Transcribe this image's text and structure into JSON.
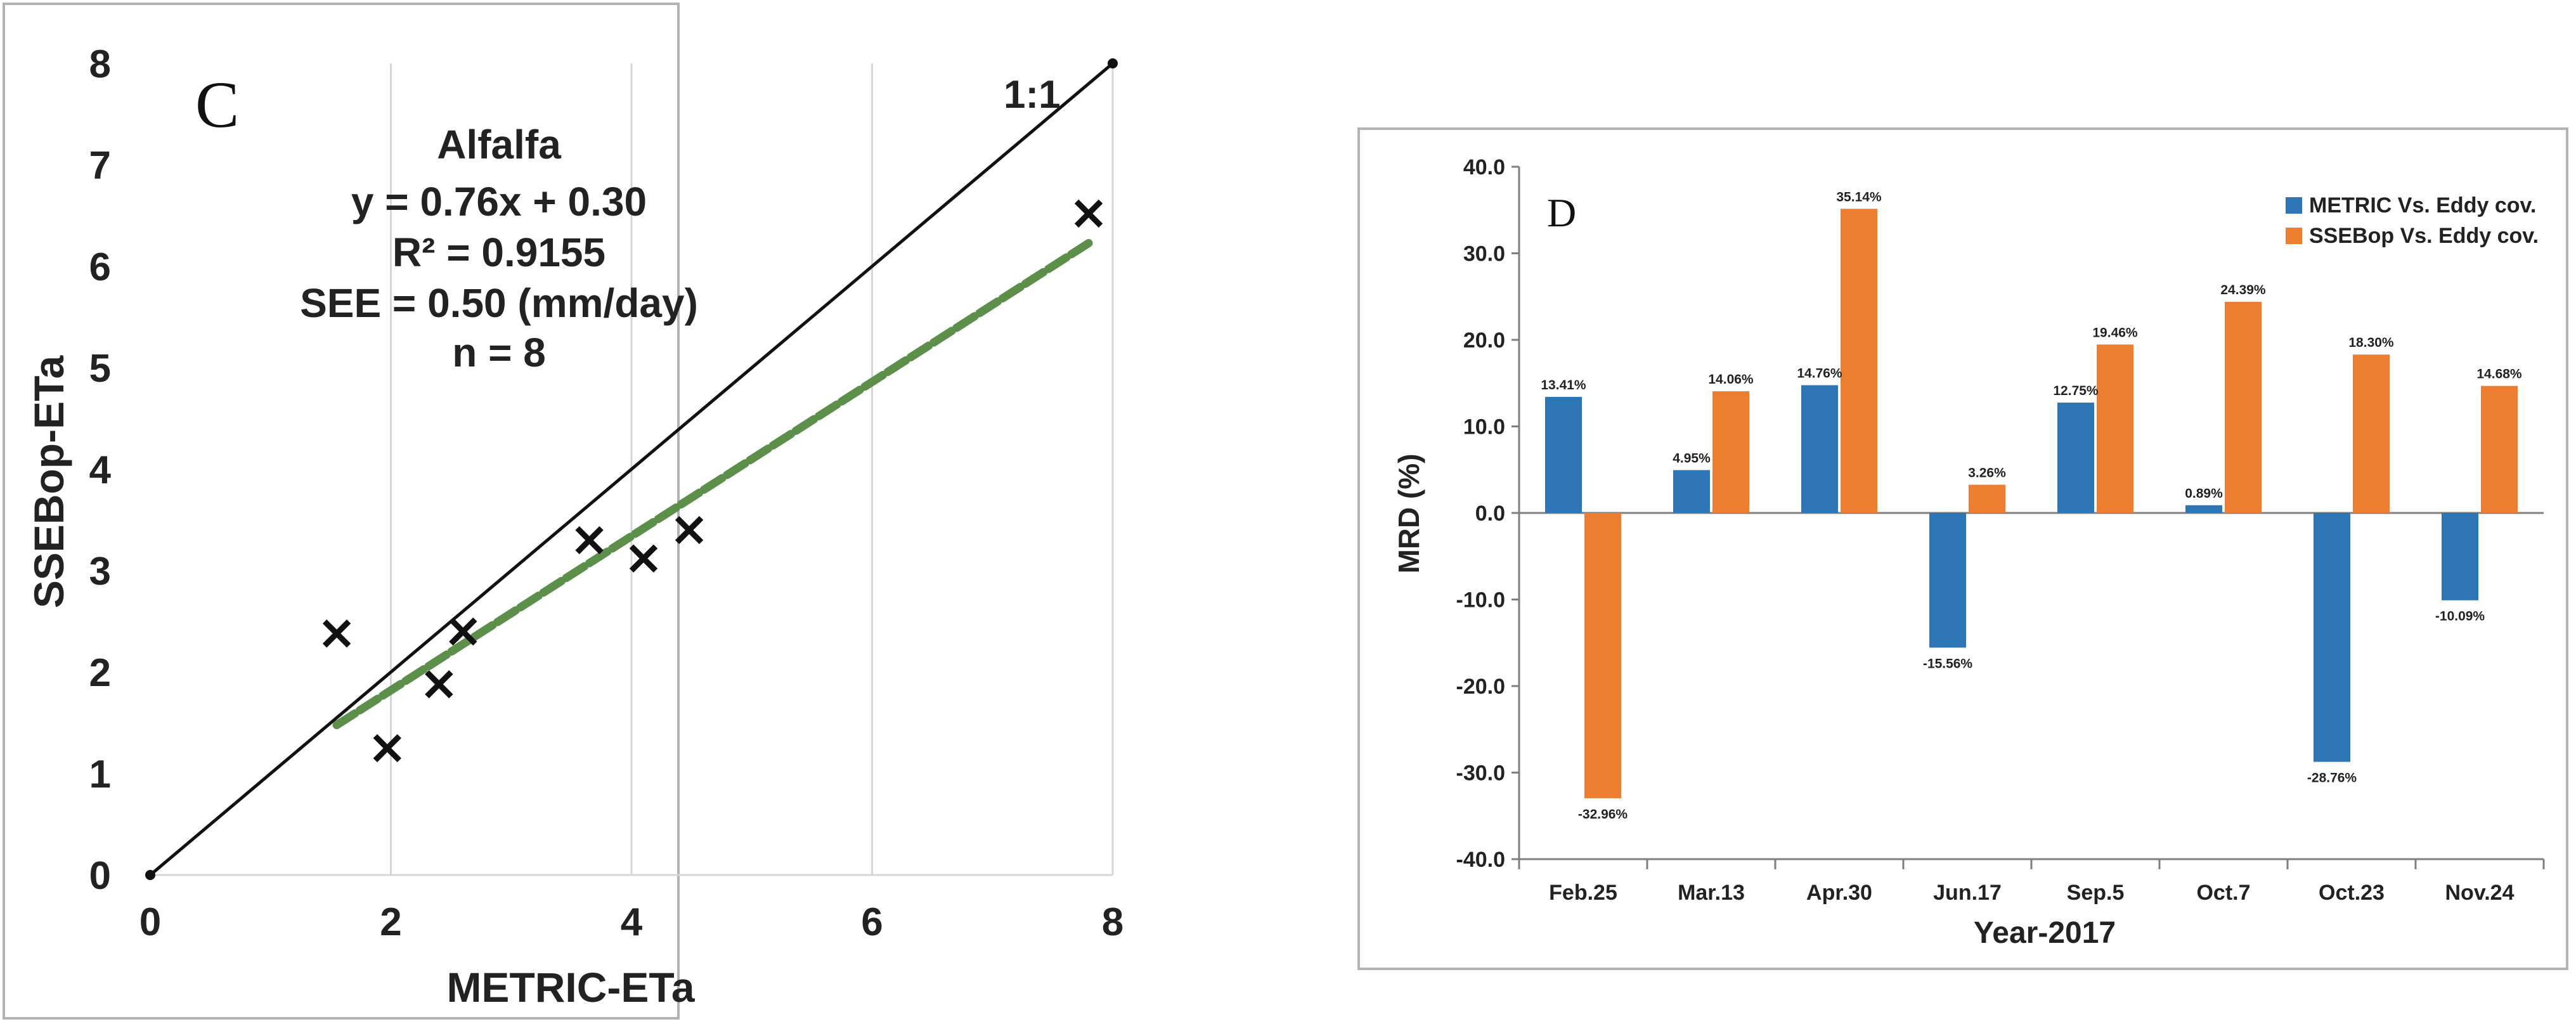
{
  "chart_data": [
    {
      "type": "scatter",
      "panel_label": "C",
      "xlabel": "METRIC-ETa",
      "ylabel": "SSEBop-ETa",
      "xlim": [
        0,
        8
      ],
      "ylim": [
        0,
        8
      ],
      "xticks": [
        "0",
        "2",
        "4",
        "6",
        "8"
      ],
      "yticks": [
        "0",
        "1",
        "2",
        "3",
        "4",
        "5",
        "6",
        "7",
        "8"
      ],
      "grid": "vertical",
      "points": [
        {
          "x": 1.55,
          "y": 2.38
        },
        {
          "x": 1.97,
          "y": 1.25
        },
        {
          "x": 2.4,
          "y": 1.88
        },
        {
          "x": 2.6,
          "y": 2.4
        },
        {
          "x": 3.65,
          "y": 3.3
        },
        {
          "x": 4.1,
          "y": 3.12
        },
        {
          "x": 4.48,
          "y": 3.4
        },
        {
          "x": 7.8,
          "y": 6.52
        }
      ],
      "reference_line": {
        "label": "1:1",
        "from": [
          0,
          0
        ],
        "to": [
          8,
          8
        ]
      },
      "fit_line": {
        "slope": 0.76,
        "intercept": 0.3,
        "x_range": [
          1.55,
          7.8
        ]
      },
      "annotations": [
        "Alfalfa",
        "y = 0.76x + 0.30",
        "R² = 0.9155",
        "SEE = 0.50 (mm/day)",
        "n = 8"
      ],
      "colors": {
        "points": "#111111",
        "ref_line": "#111111",
        "fit_line": "#5b8f4a"
      }
    },
    {
      "type": "bar",
      "panel_label": "D",
      "xlabel": "Year-2017",
      "ylabel": "MRD (%)",
      "ylim": [
        -40,
        40
      ],
      "yticks": [
        "40.0",
        "30.0",
        "20.0",
        "10.0",
        "0.0",
        "-10.0",
        "-20.0",
        "-30.0",
        "-40.0"
      ],
      "categories": [
        "Feb.25",
        "Mar.13",
        "Apr.30",
        "Jun.17",
        "Sep.5",
        "Oct.7",
        "Oct.23",
        "Nov.24"
      ],
      "series": [
        {
          "name": "METRIC Vs. Eddy cov.",
          "color": "#2e75b6",
          "values": [
            13.41,
            4.95,
            14.76,
            -15.56,
            12.75,
            0.89,
            -28.76,
            -10.09
          ],
          "labels": [
            "13.41%",
            "4.95%",
            "14.76%",
            "-15.56%",
            "12.75%",
            "0.89%",
            "-28.76%",
            "-10.09%"
          ]
        },
        {
          "name": "SSEBop Vs. Eddy cov.",
          "color": "#ed7d31",
          "values": [
            -32.96,
            14.06,
            35.14,
            3.26,
            19.46,
            24.39,
            18.3,
            14.68
          ],
          "labels": [
            "-32.96%",
            "14.06%",
            "35.14%",
            "3.26%",
            "19.46%",
            "24.39%",
            "18.30%",
            "14.68%"
          ]
        }
      ],
      "legend_position": "top-right"
    }
  ]
}
